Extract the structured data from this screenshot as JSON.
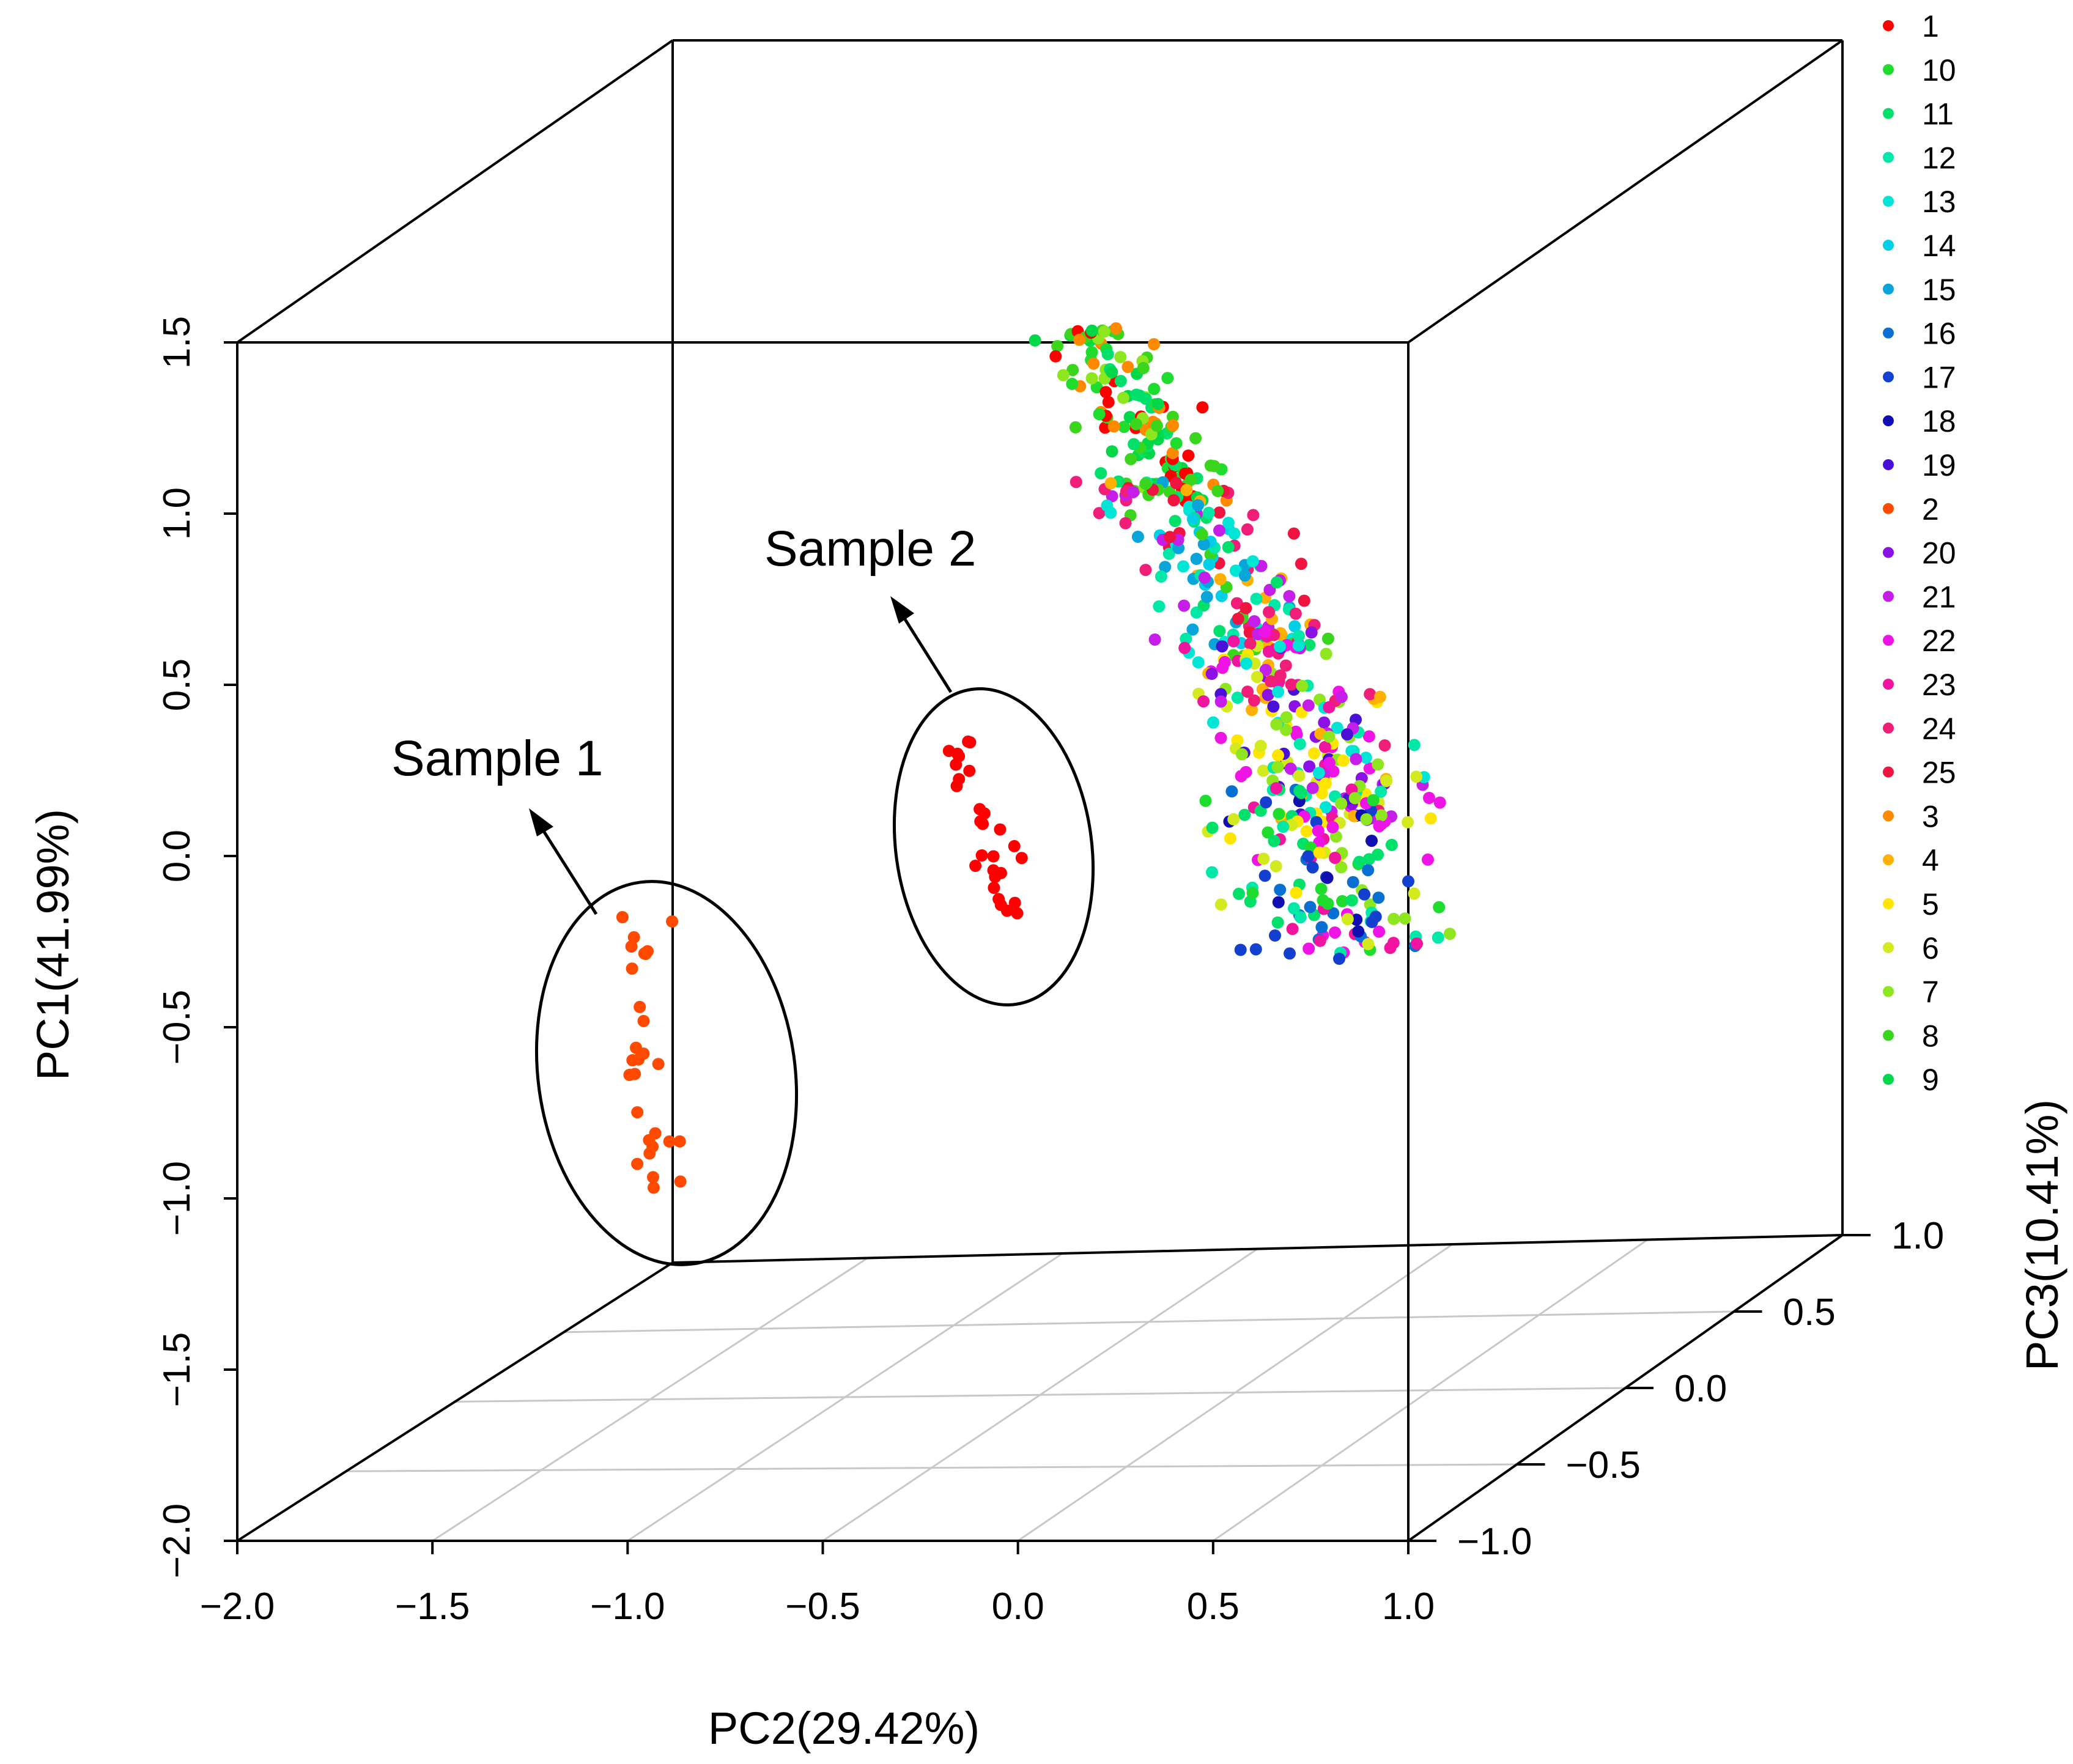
{
  "chart_data": {
    "type": "scatter",
    "projection": "3d",
    "title": "",
    "axes": {
      "x": {
        "label": "PC2(29.42%)",
        "range": [
          -2.0,
          1.0
        ],
        "ticks": [
          "−2.0",
          "−1.5",
          "−1.0",
          "−0.5",
          "0.0",
          "0.5",
          "1.0"
        ],
        "tick_values": [
          -2.0,
          -1.5,
          -1.0,
          -0.5,
          0.0,
          0.5,
          1.0
        ]
      },
      "y": {
        "label": "PC1(41.99%)",
        "range": [
          -2.0,
          1.5
        ],
        "ticks": [
          "−2.0",
          "−1.5",
          "−1.0",
          "−0.5",
          "0.0",
          "0.5",
          "1.0",
          "1.5"
        ],
        "tick_values": [
          -2.0,
          -1.5,
          -1.0,
          -0.5,
          0.0,
          0.5,
          1.0,
          1.5
        ]
      },
      "z": {
        "label": "PC3(10.41%)",
        "range": [
          -1.0,
          1.0
        ],
        "ticks": [
          "−1.0",
          "−0.5",
          "0.0",
          "0.5",
          "1.0"
        ],
        "tick_values": [
          -1.0,
          -0.5,
          0.0,
          0.5,
          1.0
        ]
      }
    },
    "grid": "floor only",
    "box": true,
    "legend_position": "top-right",
    "legend": [
      {
        "name": "1",
        "color": "#ff0000"
      },
      {
        "name": "10",
        "color": "#1fdc2e"
      },
      {
        "name": "11",
        "color": "#00e06a"
      },
      {
        "name": "12",
        "color": "#00e8a8"
      },
      {
        "name": "13",
        "color": "#00e6d6"
      },
      {
        "name": "14",
        "color": "#00cfe6"
      },
      {
        "name": "15",
        "color": "#0aa5d8"
      },
      {
        "name": "16",
        "color": "#0a6fd2"
      },
      {
        "name": "17",
        "color": "#1440d0"
      },
      {
        "name": "18",
        "color": "#1010b0"
      },
      {
        "name": "19",
        "color": "#4b10d8"
      },
      {
        "name": "2",
        "color": "#ff4a00"
      },
      {
        "name": "20",
        "color": "#8a10e6"
      },
      {
        "name": "21",
        "color": "#c41ee8"
      },
      {
        "name": "22",
        "color": "#ef14e6"
      },
      {
        "name": "23",
        "color": "#f0149e"
      },
      {
        "name": "24",
        "color": "#f01e78"
      },
      {
        "name": "25",
        "color": "#f01440"
      },
      {
        "name": "3",
        "color": "#ff8a00"
      },
      {
        "name": "4",
        "color": "#ffb000"
      },
      {
        "name": "5",
        "color": "#ffe600"
      },
      {
        "name": "6",
        "color": "#d2ea1e"
      },
      {
        "name": "7",
        "color": "#8ee61e"
      },
      {
        "name": "8",
        "color": "#3ad61e"
      },
      {
        "name": "9",
        "color": "#00d84a"
      }
    ],
    "annotations": [
      {
        "text": "Sample 1",
        "series": "2",
        "n": 28
      },
      {
        "text": "Sample 2",
        "series": "1",
        "n": 28
      }
    ],
    "main_cluster_points": 620
  }
}
